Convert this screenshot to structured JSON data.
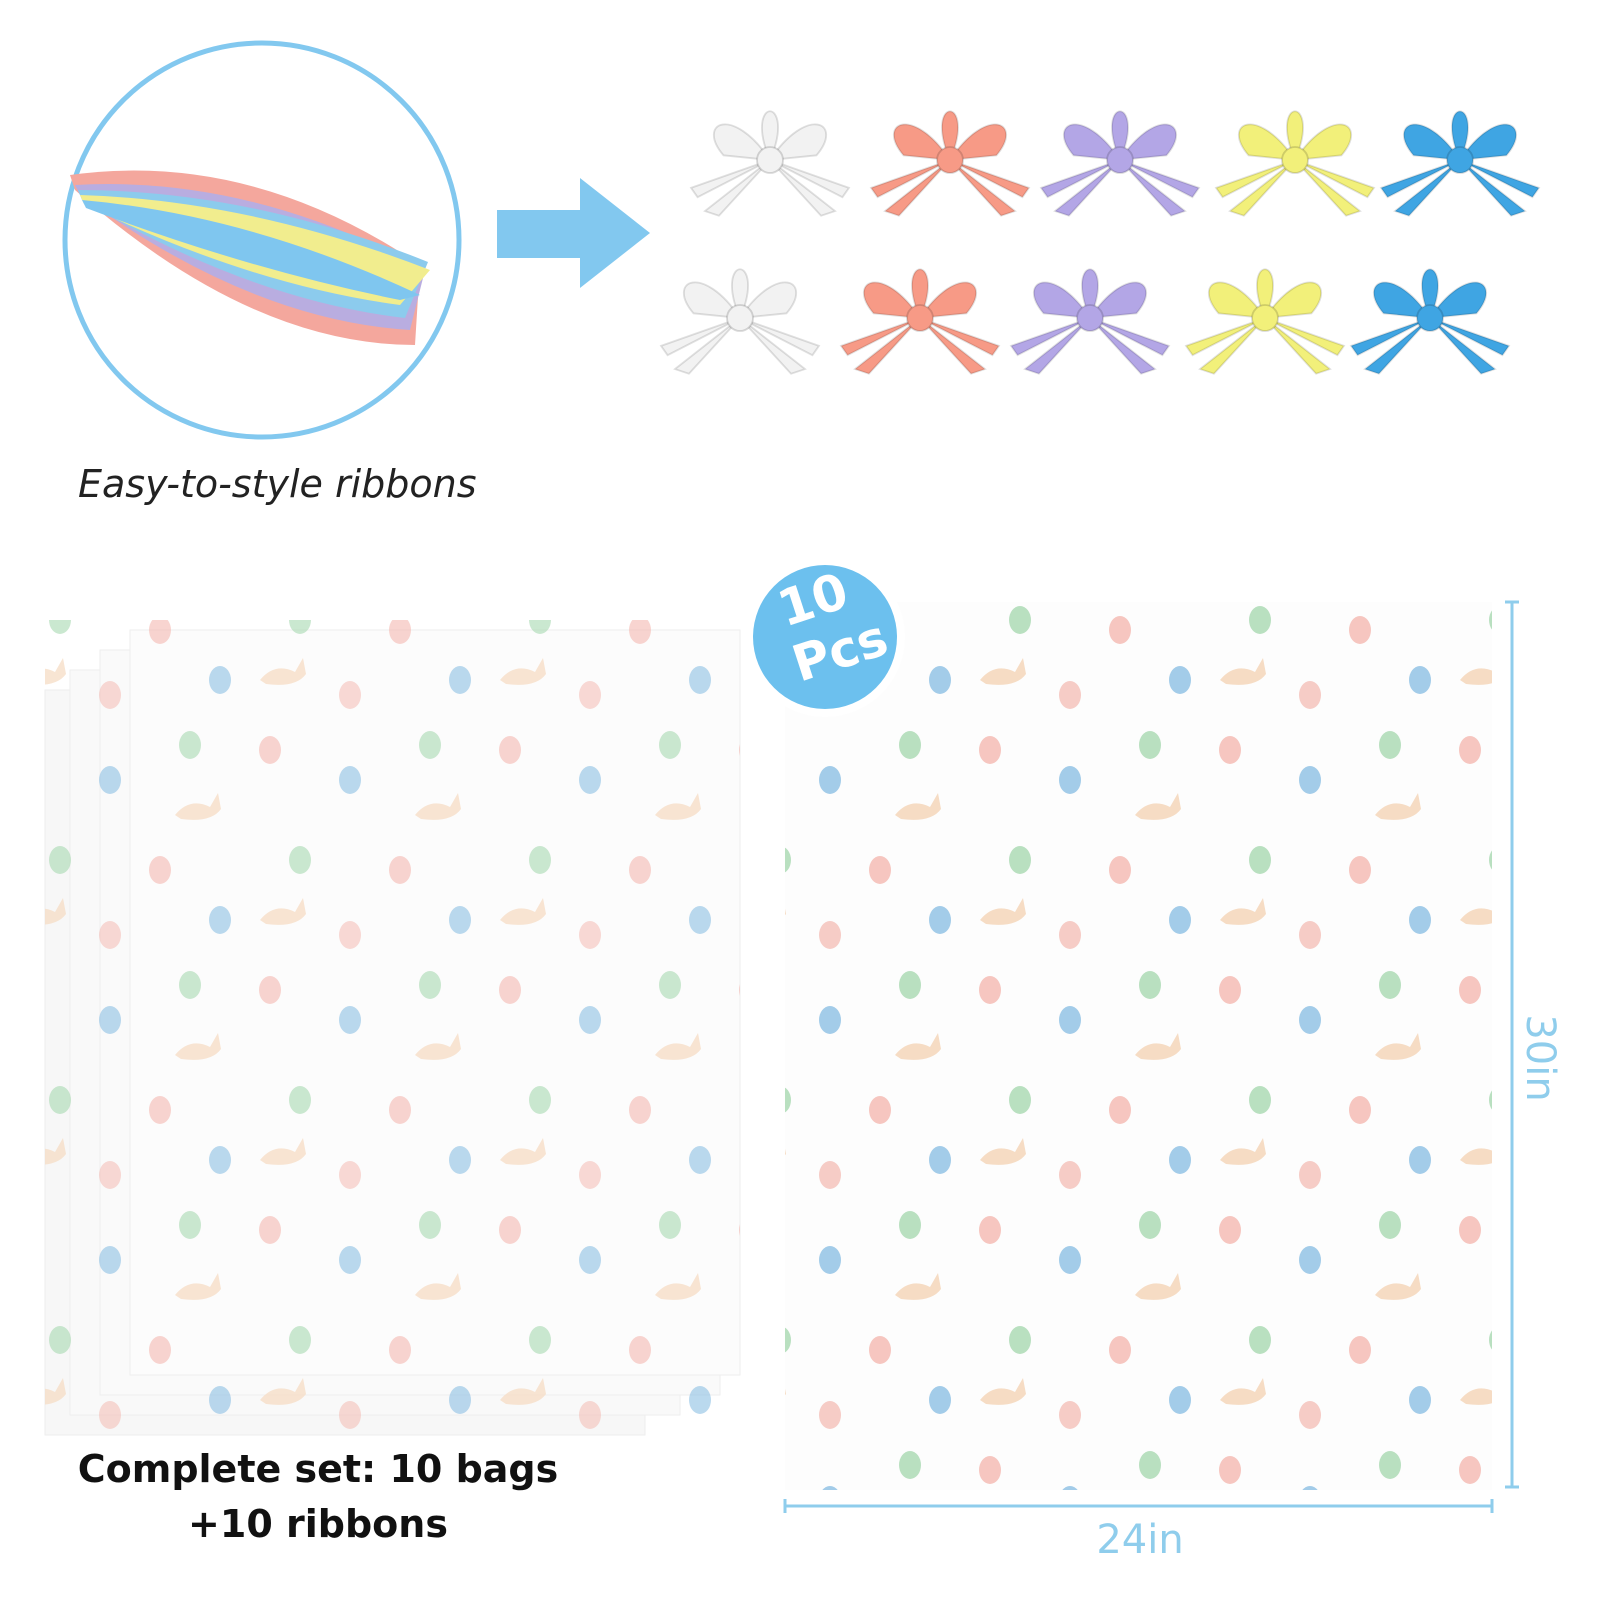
{
  "left_panel": {
    "caption": "Easy-to-style ribbons"
  },
  "badge": {
    "count": "10",
    "unit": "Pcs"
  },
  "footer": {
    "lines": [
      "Complete set: 10 bags",
      "+10 ribbons"
    ]
  },
  "dimensions": {
    "width": "24in",
    "height": "30in"
  }
}
